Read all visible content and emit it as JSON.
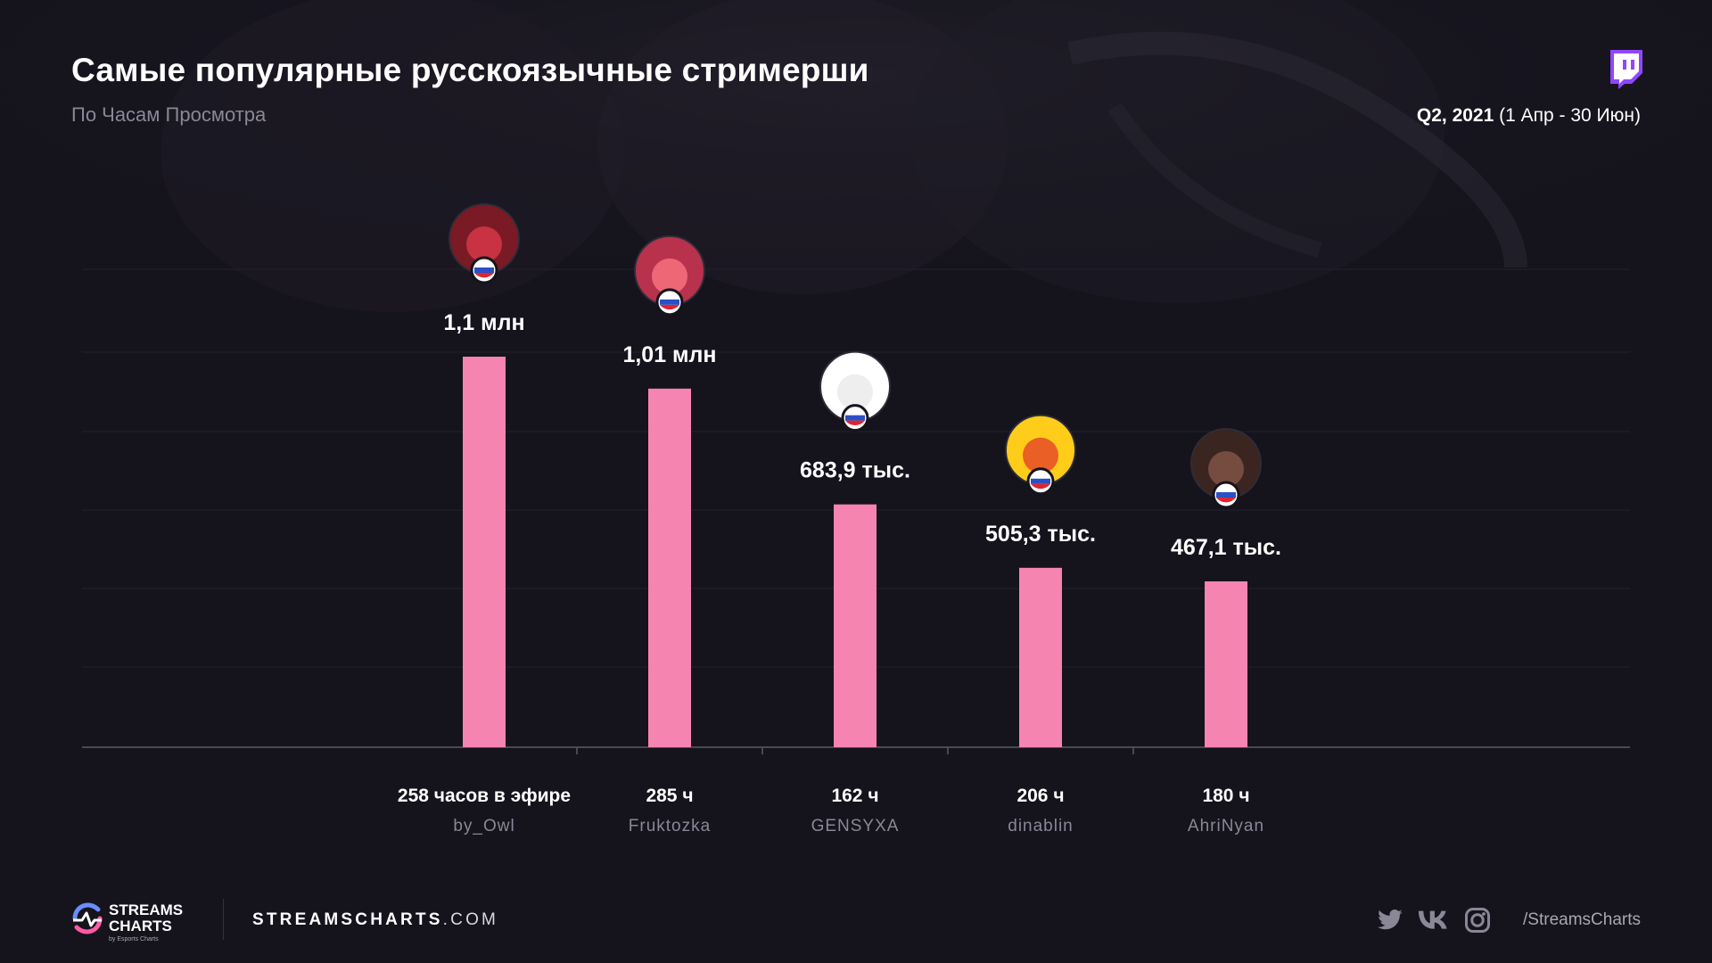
{
  "header": {
    "title": "Самые популярные русскоязычные стримерши",
    "subtitle": "По Часам Просмотра",
    "period_bold": "Q2, 2021",
    "period_rest": " (1 Апр - 30 Июн)"
  },
  "chart_data": {
    "type": "bar",
    "title": "Самые популярные русскоязычные стримерши",
    "subtitle": "По Часам Просмотра",
    "categories": [
      "by_Owl",
      "Fruktozka",
      "GENSYXA",
      "dinablin",
      "AhriNyan"
    ],
    "values": [
      1100000,
      1010000,
      683900,
      505300,
      467100
    ],
    "value_labels": [
      "1,1 млн",
      "1,01 млн",
      "683,9 тыс.",
      "505,3 тыс.",
      "467,1 тыс."
    ],
    "hours_labels": [
      "258 часов в эфире",
      "285 ч",
      "162 ч",
      "206 ч",
      "180 ч"
    ],
    "country": "RU",
    "bar_color": "#f684b0",
    "grid": true,
    "legend": "none"
  },
  "footer": {
    "logo_line1": "STREAMS",
    "logo_line2": "CHARTS",
    "logo_sub": "by Esports Charts",
    "site_bold": "STREAMSCHARTS",
    "site_rest": ".COM",
    "handle": "/StreamsCharts",
    "social_icons": [
      "twitter-icon",
      "vk-icon",
      "instagram-icon"
    ]
  },
  "colors": {
    "background": "#15131c",
    "bar": "#f684b0",
    "muted_text": "#8a8797",
    "twitch": "#9146ff"
  }
}
